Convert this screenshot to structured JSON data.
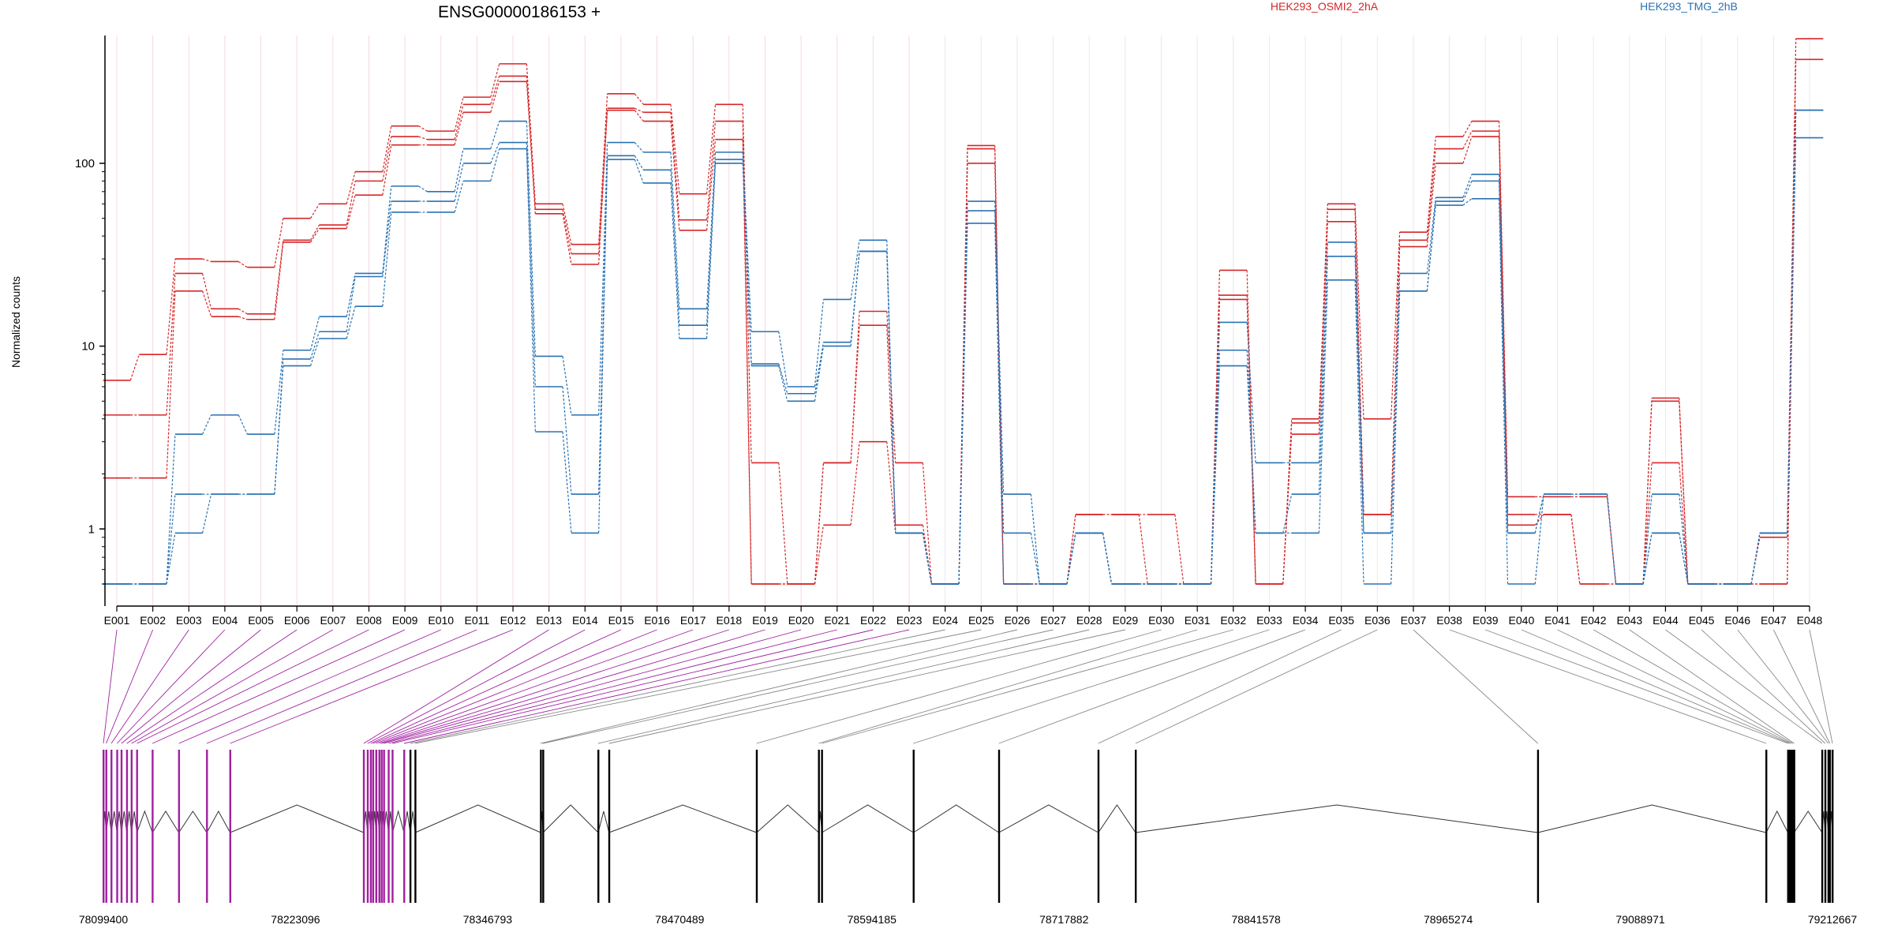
{
  "chart_data": {
    "type": "line",
    "title": "ENSG00000186153 +",
    "ylabel": "Normalized counts",
    "xlabel": "",
    "y_scale": "log",
    "y_ticks": [
      1,
      10,
      100
    ],
    "y_tick_labels": [
      "1",
      "10",
      "100"
    ],
    "ylim": [
      0.5,
      500
    ],
    "grid": "vertical lines at each exon",
    "legend_placement": "top-right",
    "line_style": "step profile per sample, dashed joins between exons",
    "categories": [
      "E001",
      "E002",
      "E003",
      "E004",
      "E005",
      "E006",
      "E007",
      "E008",
      "E009",
      "E010",
      "E011",
      "E012",
      "E013",
      "E014",
      "E015",
      "E016",
      "E017",
      "E018",
      "E019",
      "E020",
      "E021",
      "E022",
      "E023",
      "E024",
      "E025",
      "E026",
      "E027",
      "E028",
      "E029",
      "E030",
      "E031",
      "E032",
      "E033",
      "E034",
      "E035",
      "E036",
      "E037",
      "E038",
      "E039",
      "E040",
      "E041",
      "E042",
      "E043",
      "E044",
      "E045",
      "E046",
      "E047",
      "E048"
    ],
    "series": [
      {
        "name": "HEK293_OSMI2_2hA",
        "color": "#d62728",
        "values": [
          6.5,
          9,
          30,
          29,
          27,
          50,
          60,
          90,
          160,
          150,
          230,
          350,
          60,
          36,
          240,
          210,
          68,
          210,
          2.3,
          0.5,
          2.3,
          15.5,
          2.3,
          0.5,
          125,
          0.5,
          0.5,
          1.2,
          1.2,
          1.2,
          0.5,
          26,
          0.5,
          4,
          60,
          4,
          42,
          140,
          170,
          1.5,
          1.5,
          1.5,
          0.5,
          5.2,
          0.5,
          0.5,
          0.9,
          480
        ]
      },
      {
        "name": "",
        "color": "#d62728",
        "values": [
          4.2,
          4.2,
          25,
          16,
          15,
          38,
          46,
          80,
          140,
          135,
          210,
          300,
          56,
          32,
          200,
          190,
          49,
          170,
          0.5,
          0.5,
          2.3,
          13,
          1.05,
          0.5,
          120,
          0.5,
          0.5,
          1.2,
          1.2,
          0.5,
          0.5,
          19,
          0.5,
          3.8,
          56,
          1.2,
          38,
          120,
          150,
          1.2,
          1.2,
          0.5,
          0.5,
          5.0,
          0.5,
          0.5,
          0.5,
          370
        ]
      },
      {
        "name": "",
        "color": "#d62728",
        "values": [
          1.9,
          1.9,
          20,
          14.5,
          14,
          37,
          44,
          67,
          126,
          126,
          190,
          280,
          53,
          28,
          195,
          170,
          43,
          135,
          0.5,
          0.5,
          1.05,
          3.0,
          0.95,
          0.5,
          100,
          0.5,
          0.5,
          0.95,
          0.5,
          0.5,
          0.5,
          18,
          0.5,
          3.3,
          48,
          1.2,
          35,
          100,
          140,
          1.05,
          1.2,
          0.5,
          0.5,
          2.3,
          0.5,
          0.5,
          0.5,
          195
        ]
      },
      {
        "name": "HEK293_TMG_2hB",
        "color": "#2a72b2",
        "values": [
          0.5,
          0.5,
          3.3,
          4.2,
          3.3,
          9.5,
          14.5,
          25,
          75,
          70,
          120,
          170,
          8.8,
          4.2,
          130,
          115,
          16,
          115,
          12,
          6,
          18,
          38,
          0.95,
          0.5,
          62,
          1.55,
          0.5,
          0.95,
          0.5,
          0.5,
          0.5,
          13.5,
          2.3,
          2.3,
          37,
          0.95,
          25,
          65,
          87,
          0.95,
          1.55,
          1.55,
          0.5,
          1.55,
          0.5,
          0.5,
          0.95,
          195
        ]
      },
      {
        "name": "",
        "color": "#2a72b2",
        "values": [
          0.5,
          0.5,
          1.55,
          1.55,
          1.55,
          8.5,
          12,
          24,
          62,
          62,
          100,
          130,
          6.0,
          1.55,
          110,
          92,
          13,
          105,
          8,
          5.5,
          10.5,
          33,
          0.95,
          0.5,
          55,
          0.95,
          0.5,
          0.95,
          0.5,
          0.5,
          0.5,
          9.5,
          0.95,
          1.55,
          31,
          0.95,
          20,
          62,
          80,
          0.95,
          1.55,
          1.55,
          0.5,
          0.95,
          0.5,
          0.5,
          0.95,
          195
        ]
      },
      {
        "name": "",
        "color": "#2a72b2",
        "values": [
          0.5,
          0.5,
          0.95,
          1.55,
          1.55,
          7.8,
          11,
          16.5,
          54,
          54,
          80,
          120,
          3.4,
          0.95,
          105,
          78,
          11,
          100,
          7.8,
          5.0,
          10,
          33,
          0.95,
          0.5,
          47,
          0.5,
          0.5,
          0.95,
          0.5,
          0.5,
          0.5,
          7.8,
          0.95,
          0.95,
          23,
          0.5,
          20,
          59,
          64,
          0.5,
          1.55,
          1.55,
          0.5,
          0.95,
          0.5,
          0.5,
          0.95,
          138
        ]
      }
    ],
    "genomic_axis": {
      "tick_labels": [
        "78099400",
        "78223096",
        "78346793",
        "78470489",
        "78594185",
        "78717882",
        "78841578",
        "78965274",
        "79088971",
        "79212667"
      ],
      "range": [
        78099400,
        79212667
      ]
    },
    "exon_positions": [
      78099400,
      78101200,
      78104500,
      78108200,
      78111000,
      78114500,
      78117500,
      78121000,
      78131000,
      78148000,
      78166000,
      78181000,
      78267000,
      78269500,
      78271500,
      78273000,
      78275000,
      78277000,
      78278500,
      78280000,
      78283000,
      78285500,
      78293000,
      78297000,
      78300200,
      78381000,
      78382500,
      78418000,
      78425000,
      78520000,
      78560000,
      78562000,
      78621000,
      78676000,
      78740000,
      78764000,
      79023000,
      79170000,
      79184000,
      79185000,
      79186000,
      79187000,
      79188000,
      79206000,
      79208000,
      79210000,
      79211000,
      79212667
    ],
    "highlighted_exons": [
      "E001",
      "E002",
      "E003",
      "E004",
      "E005",
      "E006",
      "E007",
      "E008",
      "E009",
      "E010",
      "E011",
      "E012",
      "E013",
      "E014",
      "E015",
      "E016",
      "E017",
      "E018",
      "E019",
      "E020",
      "E021",
      "E022",
      "E023"
    ],
    "colors": {
      "highlight": "#a020a0",
      "connector": "#888888",
      "gene_model": "#000000"
    }
  }
}
